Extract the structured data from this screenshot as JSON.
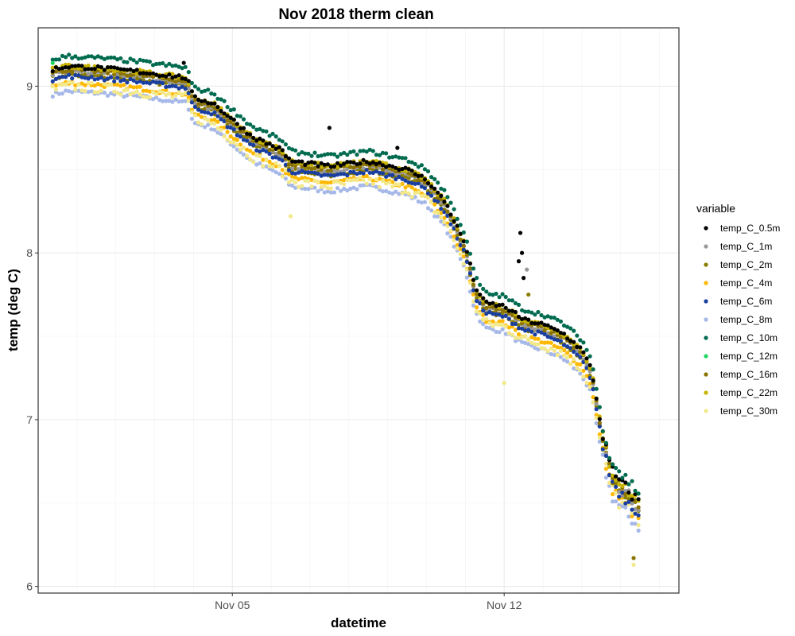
{
  "chart_data": {
    "type": "scatter",
    "title": "Nov 2018 therm clean",
    "xlabel": "datetime",
    "ylabel": "temp (deg C)",
    "x_range": [
      "2018-10-31T00:00",
      "2018-11-16T12:00"
    ],
    "ylim": [
      5.96,
      9.35
    ],
    "x_ticks": [
      {
        "date": "2018-11-05",
        "label": "Nov 05"
      },
      {
        "date": "2018-11-12",
        "label": "Nov 12"
      }
    ],
    "y_ticks": [
      6,
      7,
      8,
      9
    ],
    "grid": true,
    "legend_title": "variable",
    "legend_position": "right",
    "series": [
      {
        "name": "temp_C_0.5m",
        "color": "#000000",
        "offset": 0.0,
        "x_start": "2018-10-31T09:00",
        "x_end": "2018-11-15T12:00"
      },
      {
        "name": "temp_C_1m",
        "color": "#999999",
        "offset": -0.03,
        "x_start": "2018-10-31T09:00",
        "x_end": "2018-11-15T12:00"
      },
      {
        "name": "temp_C_2m",
        "color": "#8B7D00",
        "offset": -0.05,
        "x_start": "2018-10-31T09:00",
        "x_end": "2018-11-15T12:00"
      },
      {
        "name": "temp_C_4m",
        "color": "#FFB800",
        "offset": -0.1,
        "x_start": "2018-10-31T09:00",
        "x_end": "2018-11-15T12:00"
      },
      {
        "name": "temp_C_6m",
        "color": "#1A3FA0",
        "offset": -0.06,
        "x_start": "2018-10-31T09:00",
        "x_end": "2018-11-15T12:00"
      },
      {
        "name": "temp_C_8m",
        "color": "#A6B8E8",
        "offset": -0.15,
        "x_start": "2018-10-31T09:00",
        "x_end": "2018-11-15T12:00"
      },
      {
        "name": "temp_C_10m",
        "color": "#006B4F",
        "offset": 0.06,
        "x_start": "2018-10-31T09:00",
        "x_end": "2018-11-15T12:00"
      },
      {
        "name": "temp_C_12m",
        "color": "#1ED760",
        "offset": 0.04,
        "x_start": "2018-10-31T09:00",
        "x_end": "2018-10-31T09:00"
      },
      {
        "name": "temp_C_16m",
        "color": "#8B7300",
        "offset": -0.02,
        "x_start": "2018-10-31T09:00",
        "x_end": "2018-11-15T12:00"
      },
      {
        "name": "temp_C_22m",
        "color": "#C8B400",
        "offset": 0.0,
        "x_start": "2018-10-31T09:00",
        "x_end": "2018-11-15T12:00"
      },
      {
        "name": "temp_C_30m",
        "color": "#F3E88A",
        "offset": -0.12,
        "x_start": "2018-10-31T09:00",
        "x_end": "2018-11-15T12:00"
      }
    ],
    "base_profile": [
      [
        "2018-10-31T09:00",
        9.1
      ],
      [
        "2018-10-31T18:00",
        9.12
      ],
      [
        "2018-11-01T12:00",
        9.11
      ],
      [
        "2018-11-02T12:00",
        9.09
      ],
      [
        "2018-11-03T12:00",
        9.06
      ],
      [
        "2018-11-03T20:00",
        9.05
      ],
      [
        "2018-11-04T00:00",
        8.93
      ],
      [
        "2018-11-04T12:00",
        8.9
      ],
      [
        "2018-11-05T00:00",
        8.8
      ],
      [
        "2018-11-05T12:00",
        8.7
      ],
      [
        "2018-11-06T06:00",
        8.62
      ],
      [
        "2018-11-06T12:00",
        8.55
      ],
      [
        "2018-11-07T12:00",
        8.52
      ],
      [
        "2018-11-08T12:00",
        8.55
      ],
      [
        "2018-11-09T12:00",
        8.5
      ],
      [
        "2018-11-10T00:00",
        8.44
      ],
      [
        "2018-11-10T12:00",
        8.3
      ],
      [
        "2018-11-11T00:00",
        8.05
      ],
      [
        "2018-11-11T06:00",
        7.8
      ],
      [
        "2018-11-11T12:00",
        7.7
      ],
      [
        "2018-11-12T00:00",
        7.68
      ],
      [
        "2018-11-12T12:00",
        7.6
      ],
      [
        "2018-11-13T00:00",
        7.57
      ],
      [
        "2018-11-13T12:00",
        7.52
      ],
      [
        "2018-11-14T00:00",
        7.42
      ],
      [
        "2018-11-14T06:00",
        7.3
      ],
      [
        "2018-11-14T12:00",
        6.95
      ],
      [
        "2018-11-14T18:00",
        6.7
      ],
      [
        "2018-11-15T00:00",
        6.62
      ],
      [
        "2018-11-15T12:00",
        6.5
      ]
    ],
    "annotated_points": [
      {
        "series": "temp_C_0.5m",
        "x": "2018-11-12T10:00",
        "y": 8.12
      },
      {
        "series": "temp_C_0.5m",
        "x": "2018-11-12T11:00",
        "y": 8.0
      },
      {
        "series": "temp_C_0.5m",
        "x": "2018-11-12T09:00",
        "y": 7.95
      },
      {
        "series": "temp_C_0.5m",
        "x": "2018-11-12T12:00",
        "y": 7.85
      },
      {
        "series": "temp_C_0.5m",
        "x": "2018-11-07T12:00",
        "y": 8.75
      },
      {
        "series": "temp_C_0.5m",
        "x": "2018-11-09T06:00",
        "y": 8.63
      },
      {
        "series": "temp_C_0.5m",
        "x": "2018-11-03T18:00",
        "y": 9.14
      },
      {
        "series": "temp_C_1m",
        "x": "2018-11-12T14:00",
        "y": 7.9
      },
      {
        "series": "temp_C_2m",
        "x": "2018-11-12T15:00",
        "y": 7.75
      },
      {
        "series": "temp_C_30m",
        "x": "2018-11-06T12:00",
        "y": 8.22
      },
      {
        "series": "temp_C_30m",
        "x": "2018-11-12T00:00",
        "y": 7.22
      },
      {
        "series": "temp_C_30m",
        "x": "2018-11-15T08:00",
        "y": 6.13
      },
      {
        "series": "temp_C_16m",
        "x": "2018-11-15T08:00",
        "y": 6.17
      }
    ]
  }
}
